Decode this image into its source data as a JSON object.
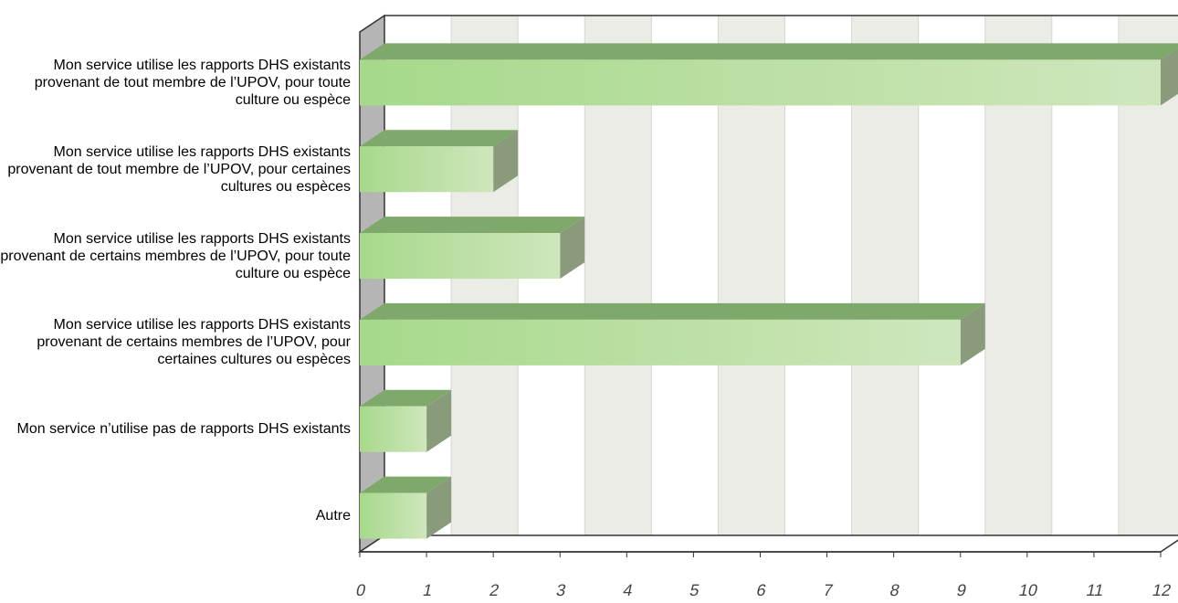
{
  "chart_data": {
    "type": "bar",
    "orientation": "horizontal",
    "categories": [
      "Mon service utilise les rapports DHS existants provenant de tout membre de l’UPOV, pour toute culture ou espèce",
      "Mon service utilise les rapports DHS existants provenant de tout membre de l’UPOV, pour certaines cultures ou espèces",
      "Mon service utilise les rapports DHS existants provenant de certains membres de l’UPOV, pour toute culture ou espèce",
      "Mon service utilise les rapports DHS existants provenant de certains membres de l’UPOV, pour certaines cultures ou espèces",
      "Mon service n’utilise pas de rapports DHS existants",
      "Autre"
    ],
    "values": [
      12,
      2,
      3,
      9,
      1,
      1
    ],
    "xlim": [
      0,
      12
    ],
    "xticks": [
      "0",
      "1",
      "2",
      "3",
      "4",
      "5",
      "6",
      "7",
      "8",
      "9",
      "10",
      "11",
      "12"
    ],
    "title": "",
    "xlabel": "",
    "ylabel": "",
    "grid": "alternating vertical bands",
    "colors": {
      "bar_light": "#cfe6bd",
      "bar_dark": "#a6d98a",
      "bar_top": "#7ea96a",
      "bar_side": "#8a9b7c",
      "band": "#ececE6",
      "wall_left": "#b5b5b5",
      "axis": "#333333"
    }
  }
}
